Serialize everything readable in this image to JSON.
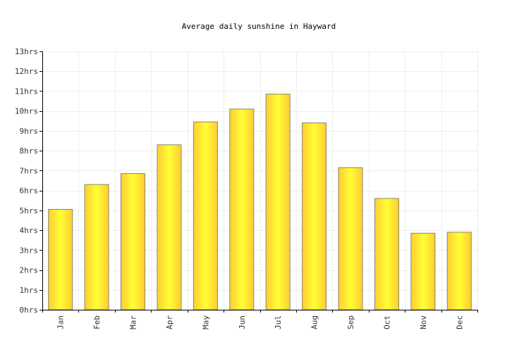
{
  "chart_data": {
    "type": "bar",
    "title": "Average daily sunshine in Hayward",
    "xlabel": "",
    "ylabel": "",
    "categories": [
      "Jan",
      "Feb",
      "Mar",
      "Apr",
      "May",
      "Jun",
      "Jul",
      "Aug",
      "Sep",
      "Oct",
      "Nov",
      "Dec"
    ],
    "values": [
      5.05,
      6.3,
      6.85,
      8.3,
      9.45,
      10.1,
      10.85,
      9.4,
      7.15,
      5.6,
      3.85,
      3.9
    ],
    "ylim": [
      0,
      13
    ],
    "yticks": [
      0,
      1,
      2,
      3,
      4,
      5,
      6,
      7,
      8,
      9,
      10,
      11,
      12,
      13
    ],
    "ytick_labels": [
      "0hrs",
      "1hrs",
      "2hrs",
      "3hrs",
      "4hrs",
      "5hrs",
      "6hrs",
      "7hrs",
      "8hrs",
      "9hrs",
      "10hrs",
      "11hrs",
      "12hrs",
      "13hrs"
    ],
    "grid": true,
    "legend": "none",
    "bar_color_light": "#ffff33",
    "bar_color_dark": "#ffcc33",
    "bar_border_color": "#888866"
  }
}
